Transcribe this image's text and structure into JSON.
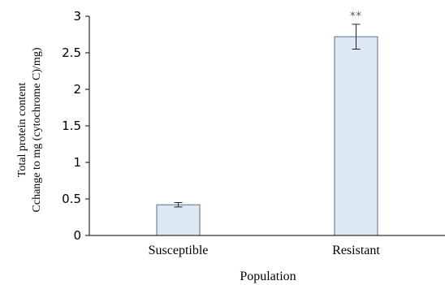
{
  "chart_data": {
    "type": "bar",
    "categories": [
      "Susceptible",
      "Resistant"
    ],
    "values": [
      0.42,
      2.72
    ],
    "errors": [
      0.03,
      0.17
    ],
    "annotations": [
      "",
      "**"
    ],
    "xlabel": "Population",
    "ylabel_lines": [
      "Total protein content",
      "Cchange to mg (cytochrome C)/mg)"
    ],
    "ylim": [
      0,
      3
    ],
    "yticks": [
      "0",
      "0.5",
      "1",
      "1.5",
      "2",
      "2.5",
      "3"
    ],
    "grid": false,
    "bar_fill": "#dde8f5",
    "bar_stroke": "#5a6e84"
  }
}
